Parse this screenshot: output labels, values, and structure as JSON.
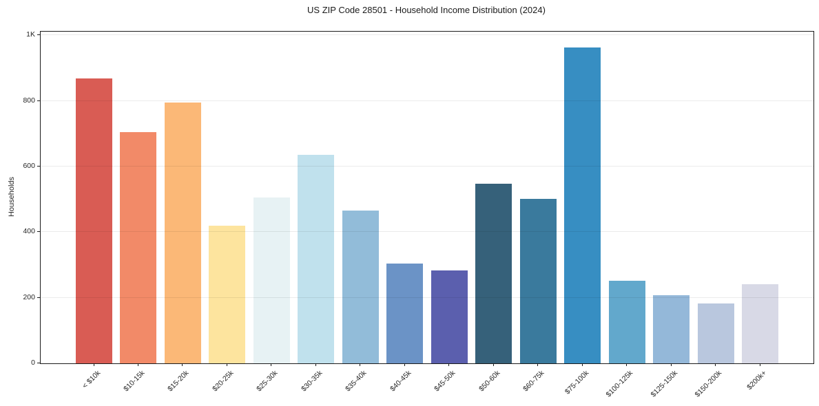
{
  "chart_data": {
    "type": "bar",
    "title": "US ZIP Code 28501 - Household Income Distribution (2024)",
    "xlabel": "",
    "ylabel": "Households",
    "categories": [
      "< $10k",
      "$10-15k",
      "$15-20k",
      "$20-25k",
      "$25-30k",
      "$30-35k",
      "$35-40k",
      "$40-45k",
      "$45-50k",
      "$50-60k",
      "$60-75k",
      "$75-100k",
      "$100-125k",
      "$125-150k",
      "$150-200k",
      "$200k+"
    ],
    "values": [
      869,
      705,
      796,
      420,
      506,
      636,
      466,
      304,
      283,
      548,
      502,
      963,
      252,
      208,
      183,
      241
    ],
    "bar_colors": [
      "#d95c54",
      "#f28a68",
      "#fbb877",
      "#fde49e",
      "#e7f2f4",
      "#c0e1ed",
      "#92bcd9",
      "#6b93c6",
      "#5b5fae",
      "#36617a",
      "#3a7a9d",
      "#378ec2",
      "#62a8cc",
      "#94b8d9",
      "#b9c7de",
      "#d8d9e6"
    ],
    "ylim": [
      0,
      1011
    ],
    "ytick_values": [
      0,
      200,
      400,
      600,
      800,
      1000
    ],
    "ytick_labels": [
      "0",
      "200",
      "400",
      "600",
      "800",
      "1K"
    ],
    "grid": "horizontal",
    "legend": "none",
    "background_color": "#ffffff",
    "spine_color": "#1a1a1a",
    "grid_color": "rgba(0,0,0,0.08)"
  }
}
